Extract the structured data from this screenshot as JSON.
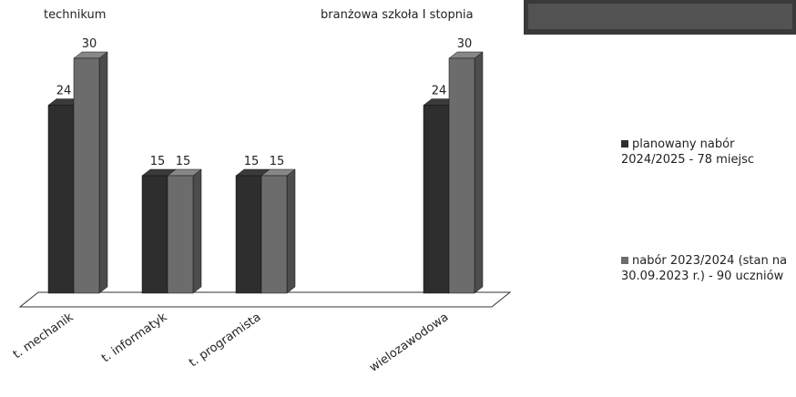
{
  "chart_data": {
    "type": "bar3d",
    "annotations": [
      "technikum",
      "branżowa szkoła I stopnia"
    ],
    "categories": [
      "t. mechanik",
      "t. informatyk",
      "t. programista",
      null,
      "wielozawodowa"
    ],
    "series": [
      {
        "name": "planowany nabór 2024/2025 - 78 miejsc",
        "color": "#2e2e2e",
        "values": [
          24,
          15,
          15,
          null,
          24
        ]
      },
      {
        "name": "nabór 2023/2024 (stan na 30.09.2023 r.) - 90 uczniów",
        "color": "#6c6c6c",
        "values": [
          30,
          15,
          15,
          null,
          30
        ]
      }
    ],
    "legend": "right"
  }
}
